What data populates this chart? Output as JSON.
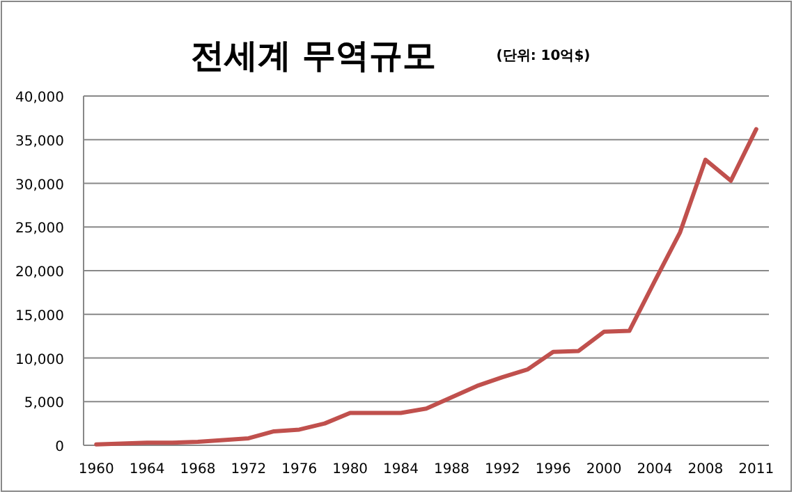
{
  "chart_data": {
    "type": "line",
    "title": "전세계 무역규모",
    "subtitle": "(단위: 10억$)",
    "categories": [
      "1960",
      null,
      "1964",
      null,
      "1968",
      null,
      "1972",
      null,
      "1976",
      null,
      "1980",
      null,
      "1984",
      null,
      "1988",
      null,
      "1992",
      null,
      "1996",
      null,
      "2000",
      null,
      "2004",
      null,
      "2008",
      null,
      "2011"
    ],
    "series": [
      {
        "color": "#c0504d",
        "values": [
          100,
          200,
          300,
          300,
          400,
          600,
          800,
          1600,
          1800,
          2500,
          3700,
          3700,
          3700,
          4200,
          5500,
          6800,
          7800,
          8700,
          10700,
          10800,
          13000,
          13100,
          18800,
          24400,
          32700,
          30300,
          36200
        ]
      }
    ],
    "ylim": [
      0,
      40000
    ],
    "yticks": [
      {
        "value": 0,
        "label": "0"
      },
      {
        "value": 5000,
        "label": "5,000"
      },
      {
        "value": 10000,
        "label": "10,000"
      },
      {
        "value": 15000,
        "label": "15,000"
      },
      {
        "value": 20000,
        "label": "20,000"
      },
      {
        "value": 25000,
        "label": "25,000"
      },
      {
        "value": 30000,
        "label": "30,000"
      },
      {
        "value": 35000,
        "label": "35,000"
      },
      {
        "value": 40000,
        "label": "40,000"
      }
    ],
    "grid": "y",
    "marker": "none",
    "line_style": "solid"
  }
}
